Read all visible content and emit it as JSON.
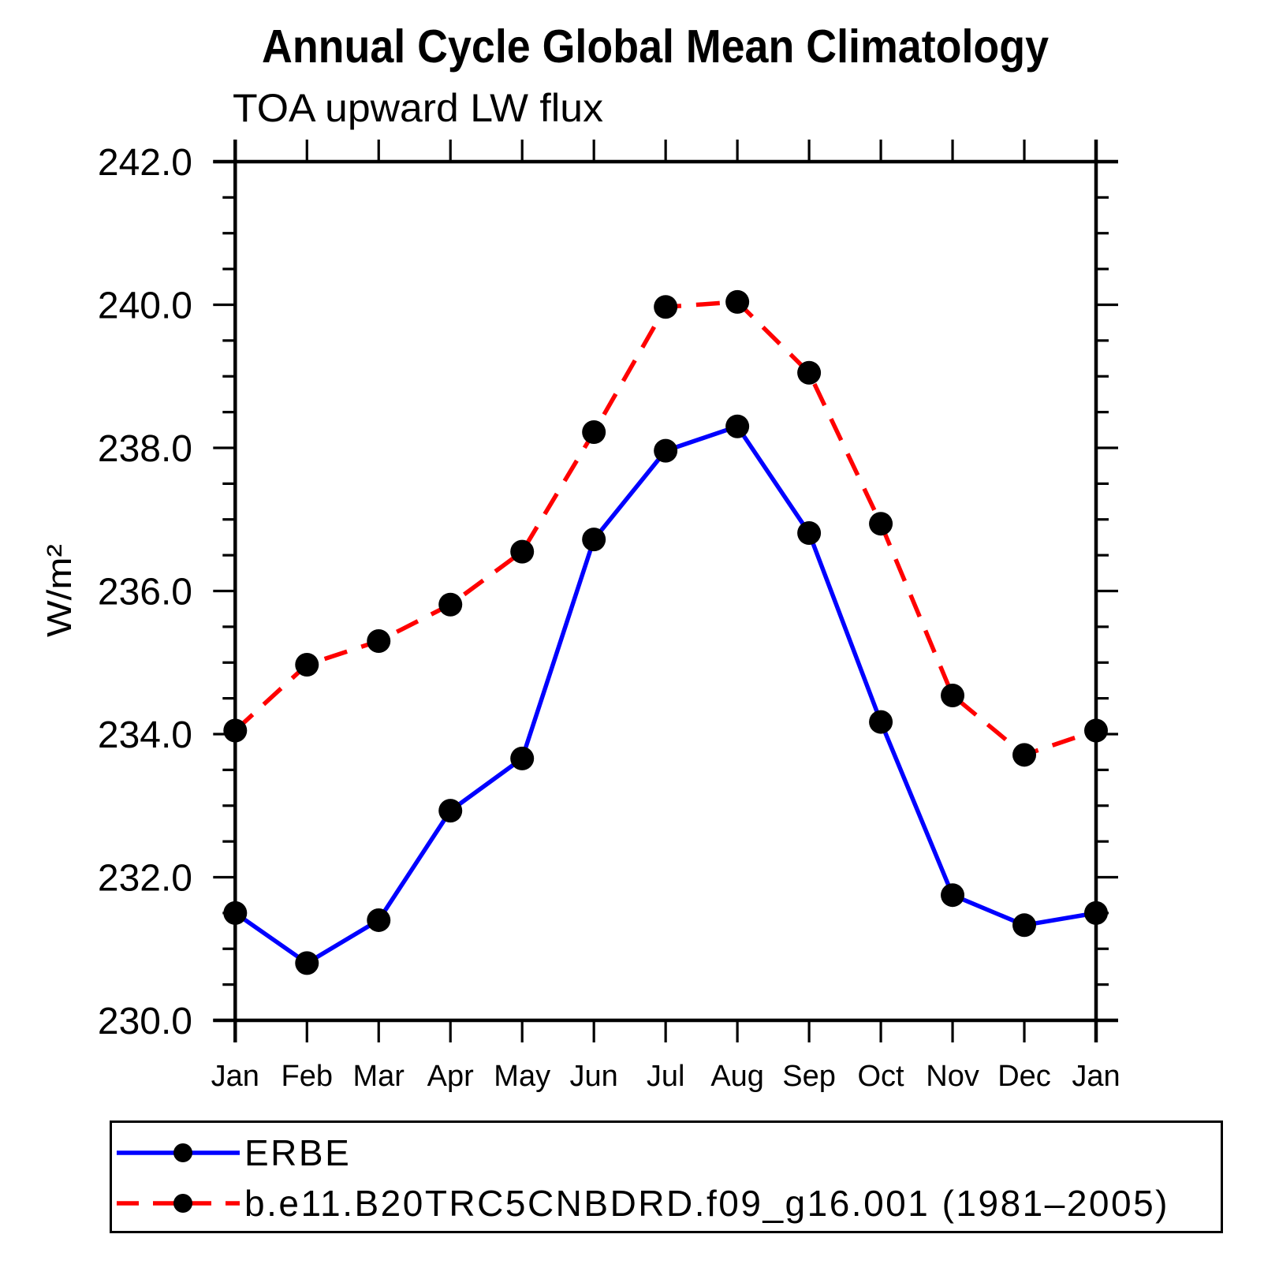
{
  "chart_data": {
    "type": "line",
    "title": "Annual Cycle Global Mean Climatology",
    "subtitle": "TOA upward LW flux",
    "ylabel": "W/m²",
    "xlabel": "",
    "categories": [
      "Jan",
      "Feb",
      "Mar",
      "Apr",
      "May",
      "Jun",
      "Jul",
      "Aug",
      "Sep",
      "Oct",
      "Nov",
      "Dec",
      "Jan"
    ],
    "ylim": [
      230.0,
      242.0
    ],
    "y_major_step": 2.0,
    "y_minor_step": 0.5,
    "y_tick_labels": [
      "242.0",
      "240.0",
      "238.0",
      "236.0",
      "234.0",
      "232.0",
      "230.0"
    ],
    "grid": false,
    "legend_position": "bottom",
    "axis_color": "#000000",
    "marker_color": "#000000",
    "series": [
      {
        "name": "ERBE",
        "color": "#0000ff",
        "line_style": "solid",
        "marker": "circle",
        "values": [
          231.5,
          230.8,
          231.4,
          232.93,
          233.66,
          236.72,
          237.96,
          238.3,
          236.81,
          234.17,
          231.75,
          231.33,
          231.5
        ]
      },
      {
        "name": "b.e11.B20TRC5CNBDRD.f09_g16.001 (1981–2005)",
        "color": "#ff0000",
        "line_style": "dashed",
        "marker": "circle",
        "values": [
          234.05,
          234.97,
          235.3,
          235.81,
          236.55,
          238.22,
          239.97,
          240.04,
          239.05,
          236.94,
          234.54,
          233.71,
          234.05
        ]
      }
    ]
  }
}
